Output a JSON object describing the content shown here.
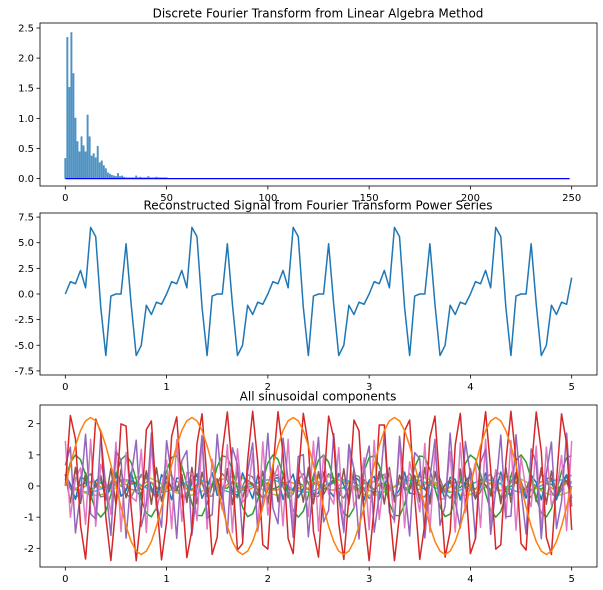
{
  "chart_data": [
    {
      "type": "bar",
      "title": "Discrete Fourier Transform from Linear Algebra Method",
      "xlabel": "",
      "ylabel": "",
      "xlim": [
        -12.5,
        262.5
      ],
      "ylim": [
        -0.123,
        2.583
      ],
      "xticks": [
        0,
        50,
        100,
        150,
        200,
        250
      ],
      "yticks": [
        0.0,
        0.5,
        1.0,
        1.5,
        2.0,
        2.5
      ],
      "x": [
        0,
        1,
        2,
        3,
        4,
        5,
        6,
        7,
        8,
        9,
        10,
        11,
        12,
        13,
        14,
        15,
        16,
        17,
        18,
        19,
        20,
        21,
        22,
        23,
        24,
        25,
        26,
        27,
        28,
        29,
        30,
        31,
        32,
        33,
        34,
        35,
        36,
        37,
        38,
        39,
        40,
        41,
        42,
        43,
        44,
        45,
        46,
        47,
        48,
        49,
        50
      ],
      "values": [
        0.34,
        2.35,
        1.52,
        2.43,
        1.75,
        1.01,
        0.62,
        0.45,
        0.7,
        0.55,
        0.45,
        1.06,
        0.7,
        0.38,
        0.42,
        0.35,
        0.54,
        0.27,
        0.3,
        0.22,
        0.17,
        0.1,
        0.08,
        0.06,
        0.05,
        0.04,
        0.09,
        0.04,
        0.05,
        0.03,
        0.02,
        0.02,
        0.02,
        0.02,
        0.02,
        0.05,
        0.02,
        0.03,
        0.02,
        0.02,
        0.02,
        0.04,
        0.02,
        0.02,
        0.02,
        0.03,
        0.02,
        0.02,
        0.02,
        0.02,
        0.02
      ],
      "baseline": {
        "x": [
          0,
          249
        ],
        "y": 0.0,
        "color": "#0000ff"
      },
      "bar_color": "#1f77b4"
    },
    {
      "type": "line",
      "title": "Reconstructed Signal from Fourier Transform Power Series",
      "xlabel": "",
      "ylabel": "",
      "xlim": [
        -0.25,
        5.25
      ],
      "ylim": [
        -7.9,
        7.9
      ],
      "xticks": [
        0,
        1,
        2,
        3,
        4,
        5
      ],
      "yticks": [
        -7.5,
        -5.0,
        -2.5,
        0.0,
        2.5,
        5.0,
        7.5
      ],
      "series": [
        {
          "color": "#1f77b4",
          "x": [
            0,
            0.05,
            0.1,
            0.15,
            0.2,
            0.25,
            0.3,
            0.35,
            0.4,
            0.45,
            0.5,
            0.55,
            0.6,
            0.65,
            0.7,
            0.75,
            0.8,
            0.85,
            0.9,
            0.95,
            1.0
          ],
          "y": [
            0.0,
            1.2,
            1.0,
            2.3,
            0.6,
            6.5,
            5.6,
            -1.3,
            -6.0,
            -0.2,
            0.0,
            0.0,
            4.9,
            -1.0,
            -6.0,
            -5.0,
            -1.1,
            -2.0,
            -0.8,
            -1.0,
            1.6
          ]
        }
      ],
      "period": 1.0,
      "x_end": 5.0
    },
    {
      "type": "line",
      "title": "All sinusoidal components",
      "xlabel": "",
      "ylabel": "",
      "xlim": [
        -0.25,
        5.25
      ],
      "ylim": [
        -2.6,
        2.6
      ],
      "xticks": [
        0,
        1,
        2,
        3,
        4,
        5
      ],
      "yticks": [
        -2,
        -1,
        0,
        1,
        2
      ],
      "series": [
        {
          "color": "#ff7f0e",
          "amplitude": 2.2,
          "frequency": 1,
          "phase": 0
        },
        {
          "color": "#d62728",
          "amplitude": 2.4,
          "frequency": 3.92,
          "phase": 0
        },
        {
          "color": "#9467bd",
          "amplitude": 1.7,
          "frequency": 6.1,
          "phase": 0.4
        },
        {
          "color": "#e377c2",
          "amplitude": 1.5,
          "frequency": 8.2,
          "phase": 1.3
        },
        {
          "color": "#2ca02c",
          "amplitude": 1.0,
          "frequency": 2.05,
          "phase": 0.2
        },
        {
          "color": "#8c564b",
          "amplitude": 0.6,
          "frequency": 11.3,
          "phase": 0.7
        },
        {
          "color": "#1f77b4",
          "amplitude": 0.45,
          "frequency": 13.7,
          "phase": 2.1
        },
        {
          "color": "#7f7f7f",
          "amplitude": 0.4,
          "frequency": 16.2,
          "phase": 1.0
        },
        {
          "color": "#bcbd22",
          "amplitude": 0.3,
          "frequency": 18.9,
          "phase": 0.5
        },
        {
          "color": "#17becf",
          "amplitude": 0.2,
          "frequency": 21.4,
          "phase": 2.7
        },
        {
          "color": "#ff7f0e",
          "amplitude": 0.15,
          "frequency": 23.6,
          "phase": 1.8
        },
        {
          "color": "#2ca02c",
          "amplitude": 0.12,
          "frequency": 26.1,
          "phase": 0.9
        }
      ],
      "x_end": 5.0,
      "samples": 101
    }
  ]
}
